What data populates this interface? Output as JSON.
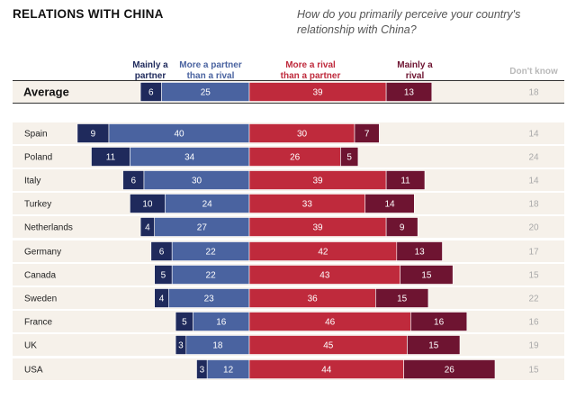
{
  "title": "RELATIONS WITH CHINA",
  "question": "How do you primarily perceive your country's relationship with China?",
  "headers": {
    "mainly_partner": "Mainly a partner",
    "more_partner": "More a partner than a rival",
    "more_rival": "More a rival than a partner",
    "mainly_rival": "Mainly a rival",
    "dont_know": "Don't know"
  },
  "colors": {
    "mainly_partner": "#1f2a5c",
    "more_partner": "#4a63a0",
    "more_rival": "#bf2a3c",
    "mainly_rival": "#6e1431",
    "dont_know": "#a9a9a9",
    "row_bg": "#f6f1ea"
  },
  "chart_data": {
    "type": "bar",
    "orientation": "horizontal-diverging-stacked",
    "categories": [
      "Average",
      "Spain",
      "Poland",
      "Italy",
      "Turkey",
      "Netherlands",
      "Germany",
      "Canada",
      "Sweden",
      "France",
      "UK",
      "USA"
    ],
    "series": [
      {
        "name": "Mainly a partner",
        "values": [
          6,
          9,
          11,
          6,
          10,
          4,
          6,
          5,
          4,
          5,
          3,
          3
        ]
      },
      {
        "name": "More a partner than a rival",
        "values": [
          25,
          40,
          34,
          30,
          24,
          27,
          22,
          22,
          23,
          16,
          18,
          12
        ]
      },
      {
        "name": "More a rival than a partner",
        "values": [
          39,
          30,
          26,
          39,
          33,
          39,
          42,
          43,
          36,
          46,
          45,
          44
        ]
      },
      {
        "name": "Mainly a rival",
        "values": [
          13,
          7,
          5,
          11,
          14,
          9,
          13,
          15,
          15,
          16,
          15,
          26
        ]
      },
      {
        "name": "Don't know",
        "values": [
          18,
          14,
          24,
          14,
          18,
          20,
          17,
          15,
          22,
          16,
          19,
          15
        ]
      }
    ]
  }
}
